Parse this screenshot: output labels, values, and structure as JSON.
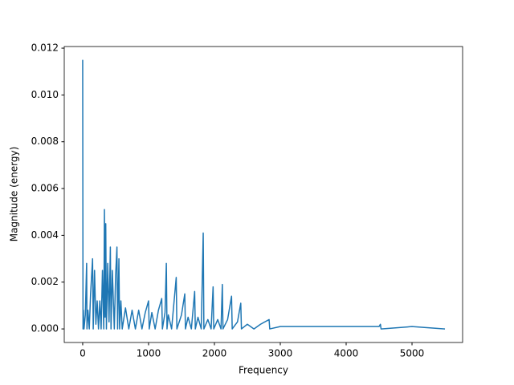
{
  "chart_data": {
    "type": "line",
    "x_label": "Frequency",
    "y_label": "Magnitude (energy)",
    "xlim": [
      -280,
      5768
    ],
    "ylim": [
      -0.00058,
      0.01207
    ],
    "xticks": [
      0,
      1000,
      2000,
      3000,
      4000,
      5000
    ],
    "yticks": [
      {
        "value": 0,
        "label": "0.000"
      },
      {
        "value": 0.002,
        "label": "0.002"
      },
      {
        "value": 0.004,
        "label": "0.004"
      },
      {
        "value": 0.006,
        "label": "0.006"
      },
      {
        "value": 0.008,
        "label": "0.008"
      },
      {
        "value": 0.01,
        "label": "0.010"
      },
      {
        "value": 0.012,
        "label": "0.012"
      }
    ],
    "color": "#1f77b4",
    "x": [
      0,
      5,
      10,
      20,
      40,
      60,
      65,
      80,
      100,
      120,
      150,
      160,
      180,
      200,
      220,
      240,
      260,
      280,
      300,
      320,
      330,
      340,
      350,
      360,
      380,
      400,
      420,
      430,
      450,
      480,
      500,
      520,
      530,
      550,
      560,
      580,
      600,
      650,
      700,
      750,
      800,
      850,
      900,
      950,
      1000,
      1010,
      1050,
      1100,
      1150,
      1200,
      1210,
      1250,
      1270,
      1280,
      1300,
      1350,
      1420,
      1430,
      1500,
      1550,
      1560,
      1600,
      1650,
      1700,
      1710,
      1750,
      1800,
      1830,
      1840,
      1900,
      1950,
      1980,
      1990,
      2050,
      2100,
      2120,
      2130,
      2200,
      2260,
      2270,
      2350,
      2400,
      2410,
      2500,
      2600,
      2700,
      2830,
      2840,
      3000,
      3500,
      4000,
      4500,
      4520,
      4530,
      5000,
      5500
    ],
    "values": [
      0.0115,
      0,
      0.0008,
      0,
      0.0006,
      0.0028,
      0,
      0.0008,
      0,
      0.0015,
      0.003,
      0,
      0.0025,
      0.0002,
      0.0012,
      0,
      0.0012,
      0,
      0.0025,
      0,
      0.0051,
      0.0005,
      0.0045,
      0,
      0.0028,
      0.0003,
      0.0035,
      0,
      0.0025,
      0,
      0.0023,
      0.0035,
      0,
      0.003,
      0,
      0.0012,
      0,
      0.0009,
      0,
      0.0008,
      0,
      0.0008,
      0,
      0.0007,
      0.0012,
      0,
      0.0007,
      0,
      0.0008,
      0.0013,
      0,
      0.0007,
      0.0028,
      0,
      0.0006,
      0,
      0.0022,
      0,
      0.0006,
      0.0015,
      0,
      0.0005,
      0,
      0.0016,
      0,
      0.0005,
      0,
      0.0041,
      0,
      0.0004,
      0,
      0.0018,
      0,
      0.0004,
      0,
      0.0019,
      0,
      0.0004,
      0.0014,
      0,
      0.0003,
      0.0011,
      0,
      0.0002,
      0,
      0.0002,
      0.0004,
      0,
      0.0001,
      0.0001,
      0.0001,
      0.0001,
      0.0002,
      0,
      0.0001,
      0
    ]
  }
}
